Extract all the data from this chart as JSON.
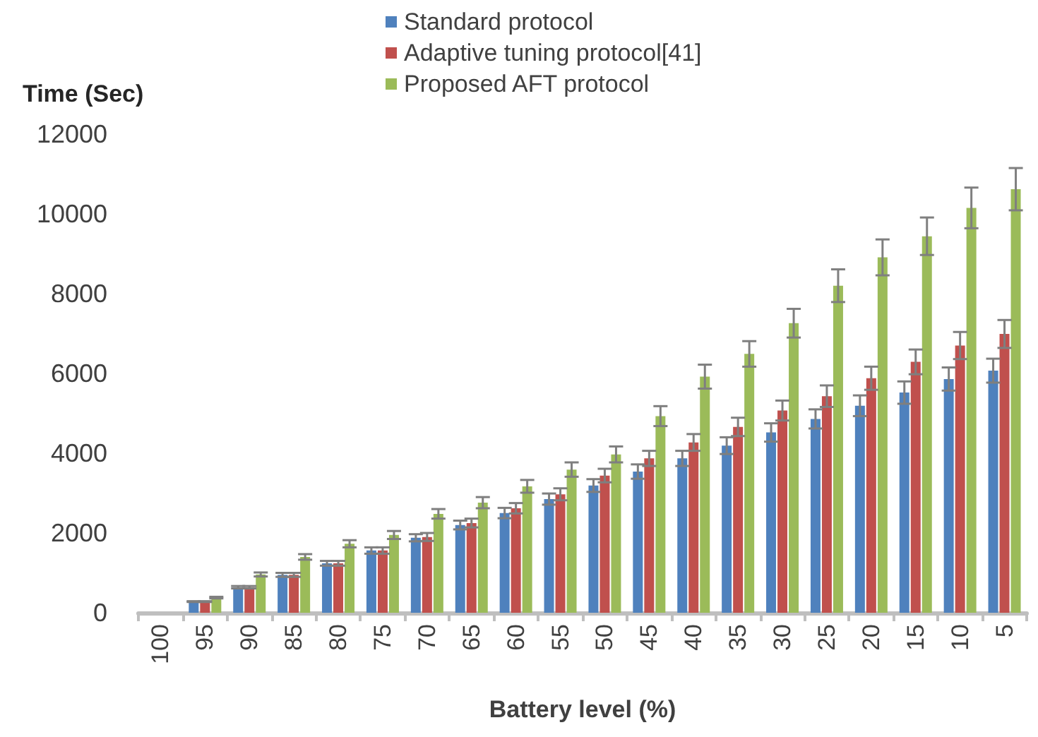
{
  "chart_data": {
    "type": "bar",
    "xlabel": "Battery level (%)",
    "ylabel": "Time (Sec)",
    "categories": [
      "100",
      "95",
      "90",
      "85",
      "80",
      "75",
      "70",
      "65",
      "60",
      "55",
      "50",
      "45",
      "40",
      "35",
      "30",
      "25",
      "20",
      "15",
      "10",
      "5"
    ],
    "series": [
      {
        "name": "Standard protocol",
        "color": "#4f81bd",
        "values": [
          null,
          280,
          640,
          950,
          1240,
          1560,
          1880,
          2200,
          2500,
          2850,
          3190,
          3540,
          3870,
          4190,
          4520,
          4860,
          5190,
          5520,
          5860,
          6070
        ],
        "errors": [
          null,
          10,
          30,
          50,
          60,
          80,
          90,
          110,
          130,
          140,
          160,
          180,
          190,
          210,
          230,
          240,
          260,
          280,
          290,
          300
        ]
      },
      {
        "name": "Adaptive tuning protocol[41]",
        "color": "#c0504d",
        "values": [
          null,
          280,
          640,
          950,
          1240,
          1560,
          1900,
          2250,
          2620,
          2970,
          3440,
          3870,
          4270,
          4660,
          5070,
          5430,
          5880,
          6290,
          6700,
          6990
        ],
        "errors": [
          null,
          10,
          30,
          50,
          60,
          80,
          100,
          110,
          130,
          150,
          170,
          190,
          210,
          230,
          250,
          270,
          290,
          310,
          340,
          350
        ]
      },
      {
        "name": "Proposed AFT protocol",
        "color": "#9bbb59",
        "values": [
          null,
          380,
          960,
          1400,
          1730,
          1950,
          2480,
          2760,
          3170,
          3590,
          3970,
          4930,
          5920,
          6490,
          7260,
          8200,
          8910,
          9440,
          10150,
          10620
        ],
        "errors": [
          null,
          20,
          50,
          70,
          90,
          100,
          120,
          140,
          160,
          180,
          200,
          250,
          300,
          320,
          360,
          410,
          450,
          470,
          510,
          530
        ]
      }
    ],
    "ylim": [
      0,
      12000
    ],
    "yticks": [
      0,
      2000,
      4000,
      6000,
      8000,
      10000,
      12000
    ],
    "grid": false,
    "legend": "top"
  }
}
